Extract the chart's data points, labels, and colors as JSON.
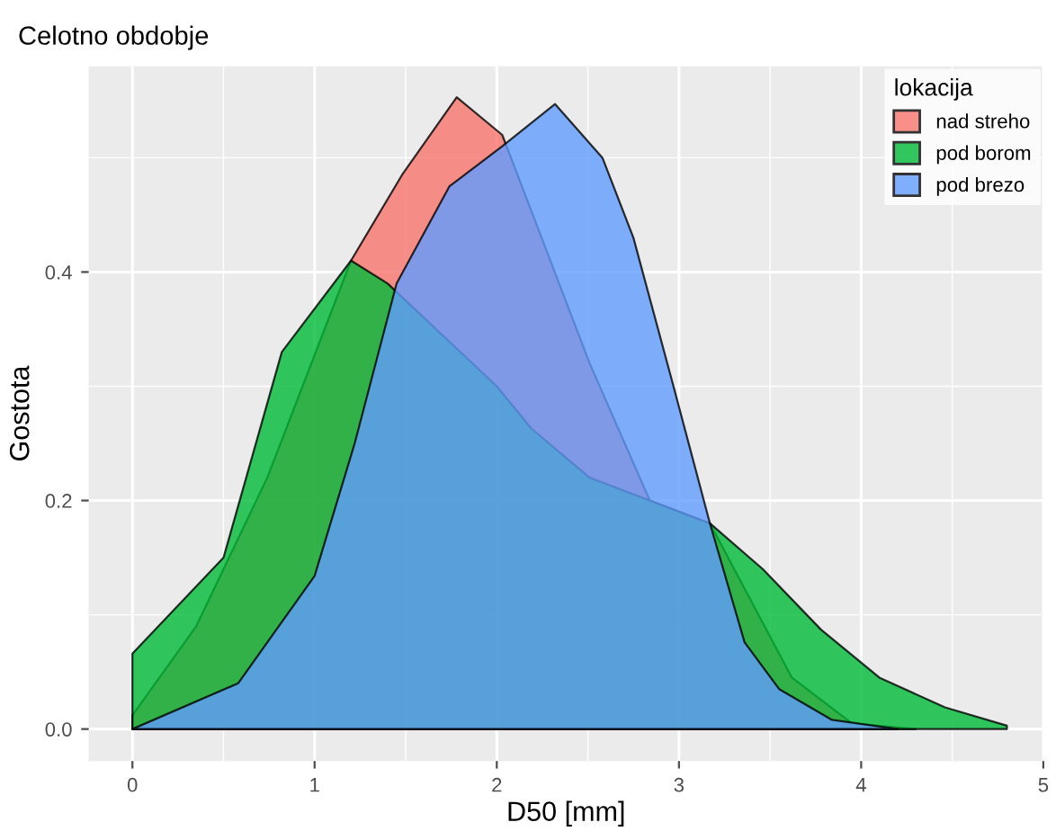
{
  "chart_data": {
    "type": "area",
    "title": "Celotno obdobje",
    "xlabel": "D50 [mm]",
    "ylabel": "Gostota",
    "legend_title": "lokacija",
    "legend": "top right",
    "grid": true,
    "xlim": [
      -0.24,
      5.0
    ],
    "xticks": [
      0,
      1,
      2,
      3,
      4,
      5
    ],
    "ylim": [
      -0.028,
      0.58
    ],
    "yticks": [
      {
        "value": 0,
        "label": "0.0"
      },
      {
        "value": 0.2,
        "label": "0.2"
      },
      {
        "value": 0.4,
        "label": "0.4"
      }
    ],
    "series": [
      {
        "name": "nad streho",
        "color": "#f8766d",
        "x": [
          0,
          0.35,
          0.74,
          1.2,
          1.48,
          1.78,
          2.03,
          2.51,
          2.84,
          3.17,
          3.62,
          3.95,
          4.3
        ],
        "values": [
          0.012,
          0.09,
          0.22,
          0.41,
          0.485,
          0.553,
          0.52,
          0.32,
          0.2,
          0.18,
          0.045,
          0.005,
          0
        ]
      },
      {
        "name": "pod borom",
        "color": "#00ba38",
        "x": [
          0,
          0.5,
          0.82,
          1.2,
          1.4,
          2.0,
          2.19,
          2.51,
          3.17,
          3.46,
          3.78,
          4.1,
          4.46,
          4.8
        ],
        "values": [
          0.066,
          0.15,
          0.33,
          0.41,
          0.39,
          0.3,
          0.263,
          0.22,
          0.18,
          0.14,
          0.087,
          0.045,
          0.019,
          0.003
        ]
      },
      {
        "name": "pod brezo",
        "color": "#619cff",
        "x": [
          0,
          0.58,
          1.0,
          1.22,
          1.45,
          1.74,
          2.03,
          2.32,
          2.58,
          2.75,
          2.97,
          3.17,
          3.36,
          3.55,
          3.84,
          4.2
        ],
        "values": [
          0,
          0.04,
          0.134,
          0.25,
          0.39,
          0.475,
          0.51,
          0.547,
          0.5,
          0.43,
          0.3,
          0.18,
          0.076,
          0.035,
          0.008,
          0
        ]
      }
    ]
  }
}
